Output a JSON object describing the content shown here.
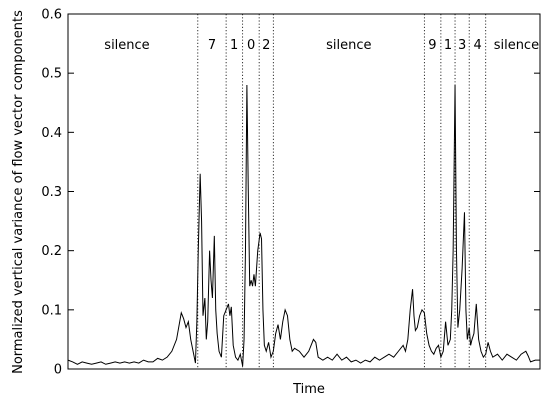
{
  "chart_data": {
    "type": "line",
    "title": "",
    "xlabel": "Time",
    "ylabel": "Normalized vertical variance of flow vector components",
    "ylim": [
      0,
      0.6
    ],
    "yticks": [
      {
        "value": 0,
        "label": "0"
      },
      {
        "value": 0.1,
        "label": "0.1"
      },
      {
        "value": 0.2,
        "label": "0.2"
      },
      {
        "value": 0.3,
        "label": "0.3"
      },
      {
        "value": 0.4,
        "label": "0.4"
      },
      {
        "value": 0.5,
        "label": "0.5"
      },
      {
        "value": 0.6,
        "label": "0.6"
      }
    ],
    "xlim": [
      0,
      100
    ],
    "x_tick_labels_shown": false,
    "grid": false,
    "boundaries": [
      27.5,
      33.5,
      37.0,
      40.5,
      43.5,
      75.5,
      79.0,
      82.0,
      85.0,
      88.5
    ],
    "segments": [
      {
        "label": "silence",
        "x": 12.5
      },
      {
        "label": "7",
        "x": 30.5
      },
      {
        "label": "1",
        "x": 35.2
      },
      {
        "label": "0",
        "x": 38.8
      },
      {
        "label": "2",
        "x": 42.0
      },
      {
        "label": "silence",
        "x": 59.5
      },
      {
        "label": "9",
        "x": 77.2
      },
      {
        "label": "1",
        "x": 80.5
      },
      {
        "label": "3",
        "x": 83.5
      },
      {
        "label": "4",
        "x": 86.8
      },
      {
        "label": "silence",
        "x": 95.0
      }
    ],
    "series": [
      {
        "points": [
          [
            0,
            0.015
          ],
          [
            1,
            0.012
          ],
          [
            2,
            0.008
          ],
          [
            3,
            0.012
          ],
          [
            4,
            0.01
          ],
          [
            5,
            0.008
          ],
          [
            6,
            0.01
          ],
          [
            7,
            0.012
          ],
          [
            8,
            0.008
          ],
          [
            9,
            0.01
          ],
          [
            10,
            0.012
          ],
          [
            11,
            0.01
          ],
          [
            12,
            0.012
          ],
          [
            13,
            0.01
          ],
          [
            14,
            0.012
          ],
          [
            15,
            0.01
          ],
          [
            16,
            0.015
          ],
          [
            17,
            0.012
          ],
          [
            18,
            0.012
          ],
          [
            19,
            0.018
          ],
          [
            20,
            0.015
          ],
          [
            21,
            0.02
          ],
          [
            22,
            0.03
          ],
          [
            23,
            0.05
          ],
          [
            24,
            0.095
          ],
          [
            24.5,
            0.085
          ],
          [
            25,
            0.07
          ],
          [
            25.5,
            0.08
          ],
          [
            26,
            0.05
          ],
          [
            26.5,
            0.03
          ],
          [
            27,
            0.01
          ],
          [
            27.3,
            0.08
          ],
          [
            27.6,
            0.2
          ],
          [
            28,
            0.33
          ],
          [
            28.3,
            0.25
          ],
          [
            28.6,
            0.09
          ],
          [
            29,
            0.12
          ],
          [
            29.3,
            0.05
          ],
          [
            29.6,
            0.08
          ],
          [
            30,
            0.2
          ],
          [
            30.3,
            0.15
          ],
          [
            30.6,
            0.12
          ],
          [
            31,
            0.225
          ],
          [
            31.3,
            0.1
          ],
          [
            31.6,
            0.06
          ],
          [
            32,
            0.03
          ],
          [
            32.5,
            0.02
          ],
          [
            33,
            0.09
          ],
          [
            33.5,
            0.1
          ],
          [
            34,
            0.11
          ],
          [
            34.3,
            0.09
          ],
          [
            34.6,
            0.105
          ],
          [
            35,
            0.04
          ],
          [
            35.5,
            0.02
          ],
          [
            36,
            0.015
          ],
          [
            36.5,
            0.025
          ],
          [
            37,
            0.005
          ],
          [
            37.3,
            0.05
          ],
          [
            37.6,
            0.2
          ],
          [
            37.9,
            0.48
          ],
          [
            38.2,
            0.3
          ],
          [
            38.5,
            0.14
          ],
          [
            38.8,
            0.15
          ],
          [
            39.1,
            0.14
          ],
          [
            39.4,
            0.16
          ],
          [
            39.7,
            0.14
          ],
          [
            40.2,
            0.2
          ],
          [
            40.7,
            0.23
          ],
          [
            41,
            0.22
          ],
          [
            41.3,
            0.1
          ],
          [
            41.6,
            0.04
          ],
          [
            42,
            0.03
          ],
          [
            42.5,
            0.045
          ],
          [
            43,
            0.02
          ],
          [
            43.5,
            0.03
          ],
          [
            44,
            0.06
          ],
          [
            44.5,
            0.075
          ],
          [
            45,
            0.05
          ],
          [
            45.5,
            0.08
          ],
          [
            46,
            0.1
          ],
          [
            46.5,
            0.09
          ],
          [
            47,
            0.05
          ],
          [
            47.5,
            0.03
          ],
          [
            48,
            0.035
          ],
          [
            49,
            0.03
          ],
          [
            50,
            0.02
          ],
          [
            51,
            0.03
          ],
          [
            52,
            0.05
          ],
          [
            52.5,
            0.045
          ],
          [
            53,
            0.02
          ],
          [
            54,
            0.015
          ],
          [
            55,
            0.02
          ],
          [
            56,
            0.015
          ],
          [
            57,
            0.025
          ],
          [
            58,
            0.015
          ],
          [
            59,
            0.02
          ],
          [
            60,
            0.012
          ],
          [
            61,
            0.015
          ],
          [
            62,
            0.01
          ],
          [
            63,
            0.015
          ],
          [
            64,
            0.012
          ],
          [
            65,
            0.02
          ],
          [
            66,
            0.015
          ],
          [
            67,
            0.02
          ],
          [
            68,
            0.025
          ],
          [
            69,
            0.02
          ],
          [
            70,
            0.03
          ],
          [
            71,
            0.04
          ],
          [
            71.5,
            0.03
          ],
          [
            72,
            0.05
          ],
          [
            72.5,
            0.1
          ],
          [
            73,
            0.135
          ],
          [
            73.3,
            0.09
          ],
          [
            73.6,
            0.065
          ],
          [
            74,
            0.07
          ],
          [
            74.5,
            0.09
          ],
          [
            75,
            0.1
          ],
          [
            75.5,
            0.095
          ],
          [
            76,
            0.06
          ],
          [
            76.5,
            0.04
          ],
          [
            77,
            0.03
          ],
          [
            77.5,
            0.025
          ],
          [
            78,
            0.035
          ],
          [
            78.5,
            0.04
          ],
          [
            79,
            0.02
          ],
          [
            79.5,
            0.03
          ],
          [
            80,
            0.08
          ],
          [
            80.5,
            0.04
          ],
          [
            81,
            0.05
          ],
          [
            81.3,
            0.1
          ],
          [
            81.6,
            0.2
          ],
          [
            82,
            0.48
          ],
          [
            82.3,
            0.2
          ],
          [
            82.6,
            0.07
          ],
          [
            83,
            0.1
          ],
          [
            83.5,
            0.17
          ],
          [
            84,
            0.265
          ],
          [
            84.3,
            0.1
          ],
          [
            84.6,
            0.05
          ],
          [
            85,
            0.07
          ],
          [
            85.3,
            0.04
          ],
          [
            85.6,
            0.05
          ],
          [
            86,
            0.06
          ],
          [
            86.5,
            0.11
          ],
          [
            87,
            0.05
          ],
          [
            87.5,
            0.03
          ],
          [
            88,
            0.02
          ],
          [
            88.5,
            0.025
          ],
          [
            89,
            0.045
          ],
          [
            89.5,
            0.03
          ],
          [
            90,
            0.02
          ],
          [
            91,
            0.025
          ],
          [
            92,
            0.015
          ],
          [
            93,
            0.025
          ],
          [
            94,
            0.02
          ],
          [
            95,
            0.015
          ],
          [
            96,
            0.025
          ],
          [
            97,
            0.03
          ],
          [
            97.5,
            0.022
          ],
          [
            98,
            0.012
          ],
          [
            99,
            0.015
          ],
          [
            100,
            0.015
          ]
        ]
      }
    ]
  }
}
